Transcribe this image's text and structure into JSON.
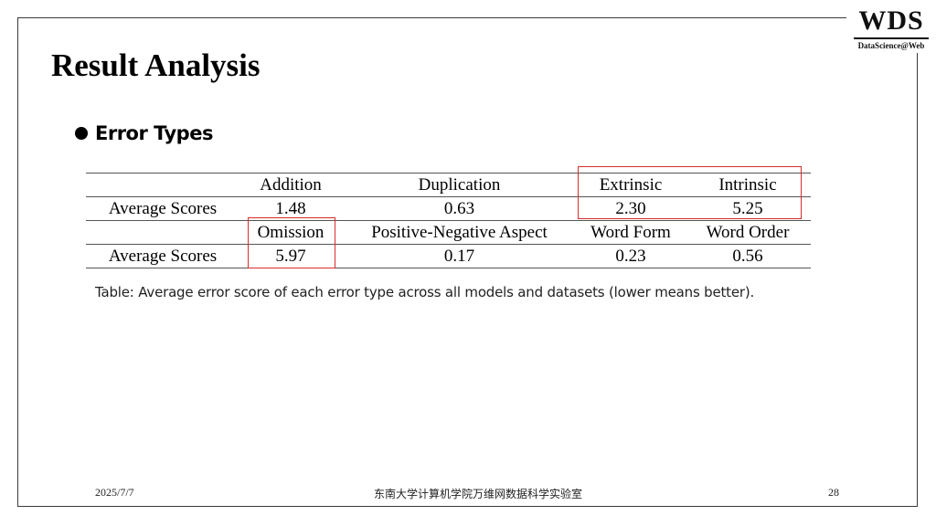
{
  "logo": {
    "main": "WDS",
    "sub": "DataScience@Web"
  },
  "slide": {
    "title": "Result Analysis",
    "bullet": "Error Types",
    "caption": "Table: Average error score of each error type across all models and datasets (lower means better)."
  },
  "table": {
    "row_label": "Average Scores",
    "group1": {
      "headers": [
        "Addition",
        "Duplication",
        "Extrinsic",
        "Intrinsic"
      ],
      "values": [
        "1.48",
        "0.63",
        "2.30",
        "5.25"
      ]
    },
    "group2": {
      "headers": [
        "Omission",
        "Positive-Negative Aspect",
        "Word Form",
        "Word Order"
      ],
      "values": [
        "5.97",
        "0.17",
        "0.23",
        "0.56"
      ]
    },
    "highlight_color": "#d62c2c"
  },
  "footer": {
    "date": "2025/7/7",
    "lab": "东南大学计算机学院万维网数据科学实验室",
    "page": "28"
  }
}
